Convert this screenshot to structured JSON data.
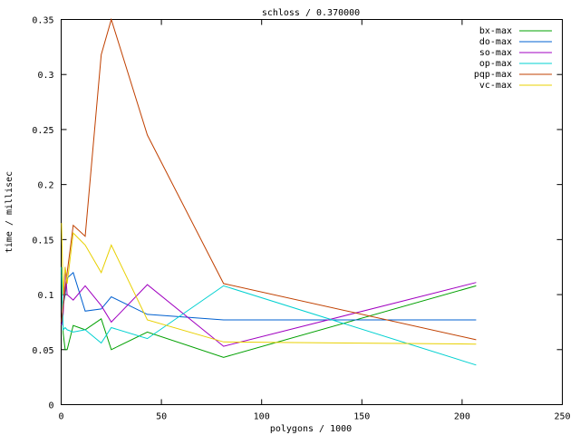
{
  "chart_data": {
    "type": "line",
    "title": "schloss / 0.370000",
    "xlabel": "polygons / 1000",
    "ylabel": "time / millisec",
    "xlim": [
      0,
      250
    ],
    "ylim": [
      0,
      0.35
    ],
    "xticks": [
      0,
      50,
      100,
      150,
      200,
      250
    ],
    "yticks": [
      0,
      0.05,
      0.1,
      0.15,
      0.2,
      0.25,
      0.3,
      0.35
    ],
    "xtick_labels": [
      "0",
      "50",
      "100",
      "150",
      "200",
      "250"
    ],
    "ytick_labels": [
      "0",
      "0.05",
      "0.1",
      "0.15",
      "0.2",
      "0.25",
      "0.3",
      "0.35"
    ],
    "grid": false,
    "legend_position": "top-right",
    "series": [
      {
        "name": "bx-max",
        "color": "#00a000",
        "x": [
          0.2,
          1,
          2,
          3,
          6,
          12,
          20,
          25,
          43,
          81,
          207
        ],
        "y": [
          0.118,
          0.065,
          0.05,
          0.05,
          0.072,
          0.068,
          0.078,
          0.05,
          0.066,
          0.043,
          0.108
        ]
      },
      {
        "name": "do-max",
        "color": "#0060d0",
        "x": [
          0.2,
          1,
          2,
          3,
          6,
          12,
          20,
          25,
          43,
          81,
          207
        ],
        "y": [
          0.075,
          0.09,
          0.1,
          0.115,
          0.12,
          0.085,
          0.087,
          0.098,
          0.082,
          0.077,
          0.077
        ]
      },
      {
        "name": "so-max",
        "color": "#a000c0",
        "x": [
          0.2,
          1,
          2,
          3,
          6,
          12,
          20,
          25,
          43,
          81,
          207
        ],
        "y": [
          0.072,
          0.082,
          0.125,
          0.1,
          0.095,
          0.108,
          0.09,
          0.075,
          0.109,
          0.053,
          0.111
        ]
      },
      {
        "name": "op-max",
        "color": "#00d0d0",
        "x": [
          0.2,
          1,
          2,
          3,
          6,
          12,
          20,
          25,
          43,
          81,
          207
        ],
        "y": [
          0.125,
          0.068,
          0.07,
          0.068,
          0.066,
          0.068,
          0.056,
          0.07,
          0.06,
          0.108,
          0.036
        ]
      },
      {
        "name": "pqp-max",
        "color": "#c04000",
        "x": [
          0.2,
          1,
          2,
          3,
          6,
          12,
          20,
          25,
          43,
          81,
          207
        ],
        "y": [
          0.075,
          0.09,
          0.105,
          0.12,
          0.163,
          0.153,
          0.318,
          0.35,
          0.245,
          0.11,
          0.059
        ]
      },
      {
        "name": "vc-max",
        "color": "#e8d000",
        "x": [
          0.2,
          1,
          2,
          3,
          6,
          12,
          20,
          25,
          43,
          81,
          207
        ],
        "y": [
          0.165,
          0.1,
          0.125,
          0.11,
          0.156,
          0.145,
          0.12,
          0.145,
          0.077,
          0.057,
          0.055
        ]
      }
    ]
  }
}
